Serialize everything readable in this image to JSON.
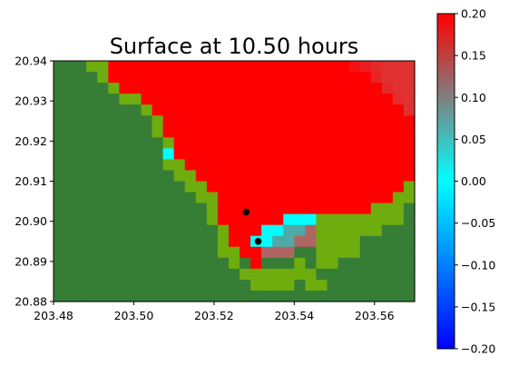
{
  "chart_data": {
    "type": "heatmap",
    "title": "Surface at 10.50 hours",
    "xlabel": "",
    "ylabel": "",
    "xlim": [
      203.48,
      203.57
    ],
    "ylim": [
      20.88,
      20.94
    ],
    "xticks": [
      "203.48",
      "203.50",
      "203.52",
      "203.54",
      "203.56"
    ],
    "yticks": [
      "20.88",
      "20.89",
      "20.90",
      "20.91",
      "20.92",
      "20.93",
      "20.94"
    ],
    "colorbar": {
      "range": [
        -0.2,
        0.2
      ],
      "ticks": [
        "0.20",
        "0.15",
        "0.10",
        "0.05",
        "0.00",
        "−0.05",
        "−0.10",
        "−0.15",
        "−0.20"
      ],
      "colors": [
        "#0000ff",
        "#00ffff",
        "#ff0000"
      ]
    },
    "grid": {
      "cols": 33,
      "rows": 22
    },
    "land_colors": {
      "dark": "#367d36",
      "light": "#6fad0e"
    },
    "points": [
      {
        "x": 203.528,
        "y": 20.9023
      },
      {
        "x": 203.531,
        "y": 20.895
      }
    ]
  }
}
